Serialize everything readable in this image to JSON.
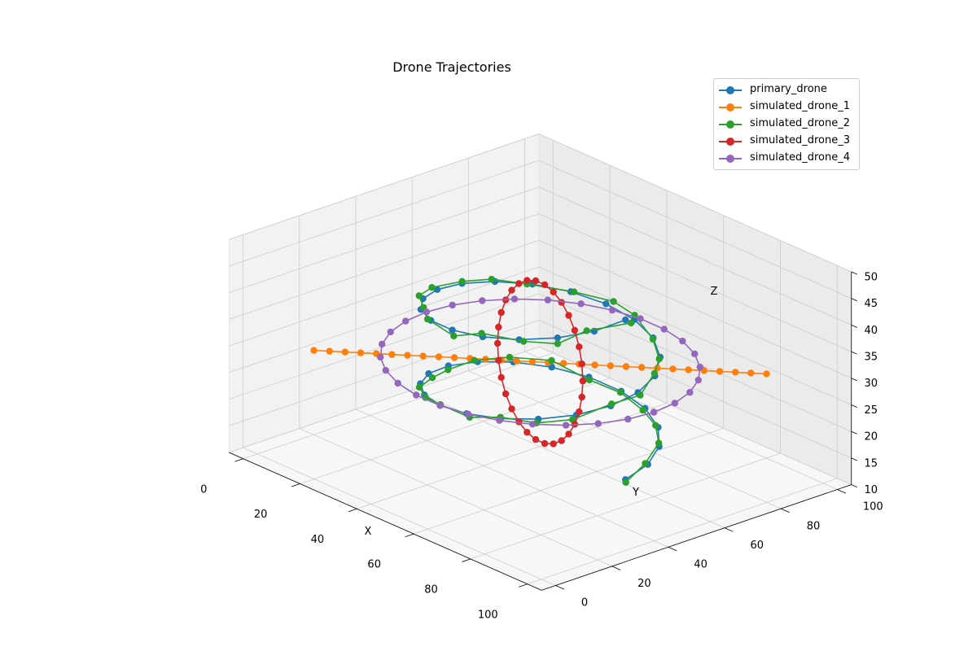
{
  "chart_data": {
    "type": "line",
    "projection": "3d",
    "title": "Drone Trajectories",
    "xlabel": "X",
    "ylabel": "Y",
    "zlabel": "Z",
    "xlim": [
      0,
      100
    ],
    "ylim": [
      0,
      100
    ],
    "zlim": [
      10,
      50
    ],
    "xticks": [
      "0",
      "20",
      "40",
      "60",
      "80",
      "100"
    ],
    "yticks": [
      "0",
      "20",
      "40",
      "60",
      "80",
      "100"
    ],
    "zticks": [
      "10",
      "15",
      "20",
      "25",
      "30",
      "35",
      "40",
      "45",
      "50"
    ],
    "grid": true,
    "legend_position": "upper-right-outside",
    "series": [
      {
        "name": "primary_drone",
        "color": "#1f77b4",
        "kind": "helix_z",
        "center": [
          50,
          50
        ],
        "radius": 30,
        "z_range": [
          15,
          45
        ],
        "turns": 2,
        "points": 40
      },
      {
        "name": "simulated_drone_1",
        "color": "#ff7f0e",
        "kind": "line",
        "start": [
          10,
          10,
          30
        ],
        "end": [
          90,
          90,
          30
        ],
        "points": 30
      },
      {
        "name": "simulated_drone_2",
        "color": "#2ca02c",
        "kind": "helix_z",
        "center": [
          50,
          50
        ],
        "radius": 30,
        "z_range": [
          15,
          45
        ],
        "turns": 2,
        "points": 40,
        "noise": 1.5
      },
      {
        "name": "simulated_drone_3",
        "color": "#d62728",
        "kind": "circle_xz",
        "center": [
          50,
          50,
          30
        ],
        "radius": 15,
        "points": 30
      },
      {
        "name": "simulated_drone_4",
        "color": "#9467bd",
        "kind": "circle_xy",
        "center": [
          50,
          50,
          30
        ],
        "radius": 40,
        "points": 30
      }
    ]
  }
}
